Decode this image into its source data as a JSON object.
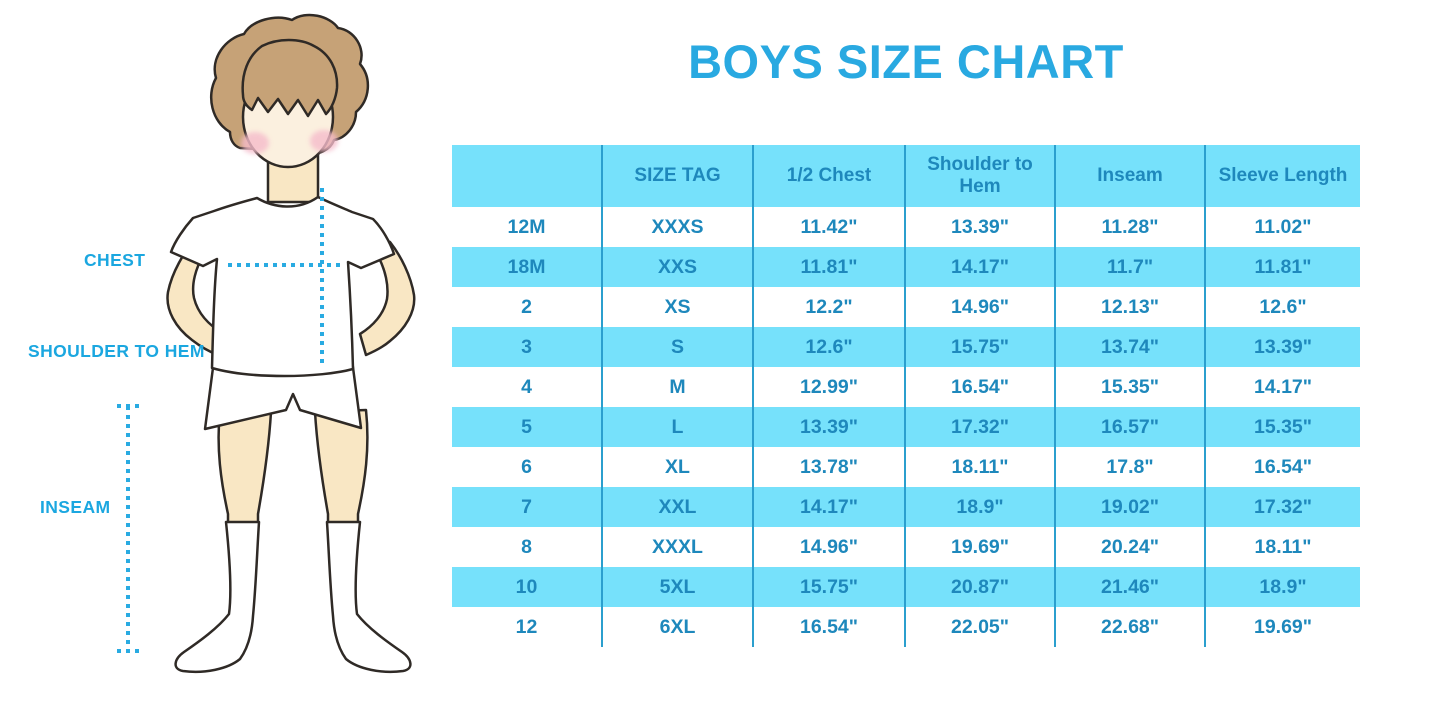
{
  "title": "BOYS SIZE CHART",
  "figure": {
    "chest_label": "CHEST",
    "shoulder_label": "SHOULDER TO HEM",
    "inseam_label": "INSEAM"
  },
  "colors": {
    "accent": "#29A9E1",
    "label": "#1BA7E0",
    "dotted_line": "#29ABE2",
    "row_fill": "#76E1FB",
    "table_text": "#1E88BC",
    "divider": "#2B9FCE",
    "hair": "#C6A277",
    "skin": "#F9E7C4",
    "face": "#FBF0DF",
    "blush": "#F5BCCB"
  },
  "chart_data": {
    "type": "table",
    "title": "BOYS SIZE CHART",
    "columns": [
      "",
      "SIZE TAG",
      "1/2 Chest",
      "Shoulder to Hem",
      "Inseam",
      "Sleeve Length"
    ],
    "rows": [
      [
        "12M",
        "XXXS",
        "11.42\"",
        "13.39\"",
        "11.28\"",
        "11.02\""
      ],
      [
        "18M",
        "XXS",
        "11.81\"",
        "14.17\"",
        "11.7\"",
        "11.81\""
      ],
      [
        "2",
        "XS",
        "12.2\"",
        "14.96\"",
        "12.13\"",
        "12.6\""
      ],
      [
        "3",
        "S",
        "12.6\"",
        "15.75\"",
        "13.74\"",
        "13.39\""
      ],
      [
        "4",
        "M",
        "12.99\"",
        "16.54\"",
        "15.35\"",
        "14.17\""
      ],
      [
        "5",
        "L",
        "13.39\"",
        "17.32\"",
        "16.57\"",
        "15.35\""
      ],
      [
        "6",
        "XL",
        "13.78\"",
        "18.11\"",
        "17.8\"",
        "16.54\""
      ],
      [
        "7",
        "XXL",
        "14.17\"",
        "18.9\"",
        "19.02\"",
        "17.32\""
      ],
      [
        "8",
        "XXXL",
        "14.96\"",
        "19.69\"",
        "20.24\"",
        "18.11\""
      ],
      [
        "10",
        "5XL",
        "15.75\"",
        "20.87\"",
        "21.46\"",
        "18.9\""
      ],
      [
        "12",
        "6XL",
        "16.54\"",
        "22.05\"",
        "22.68\"",
        "19.69\""
      ]
    ],
    "row_striping": "header and even data rows light cyan, others white",
    "grid": "vertical column dividers only"
  }
}
